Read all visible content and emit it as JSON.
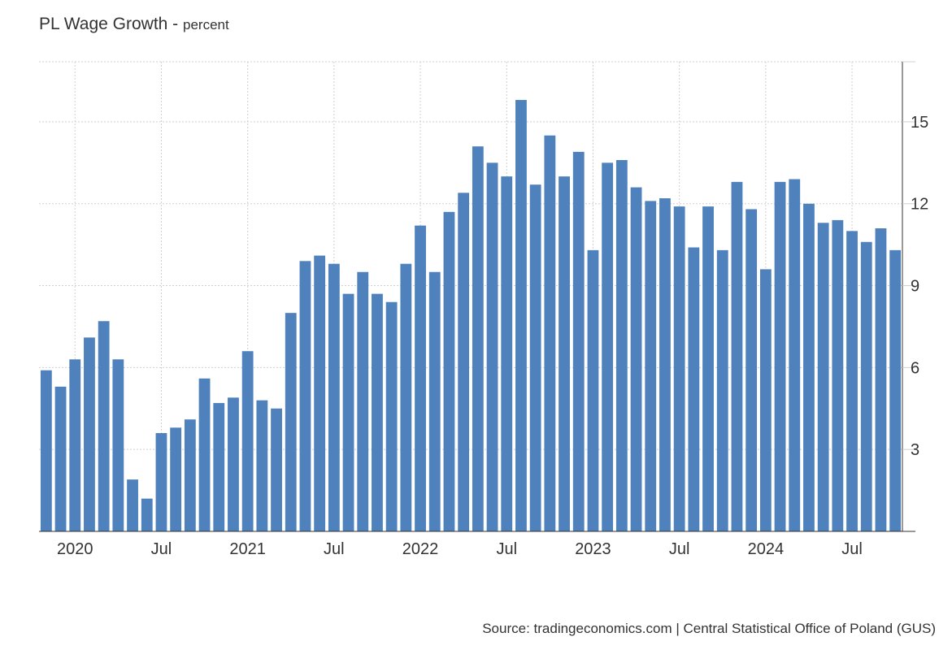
{
  "header": {
    "title": "PL Wage Growth",
    "unit": "percent"
  },
  "footer": {
    "source": "Source: tradingeconomics.com | Central Statistical Office of Poland (GUS)"
  },
  "colors": {
    "bar": "#4f81bd",
    "grid": "#d0d0d0",
    "axis": "#333333",
    "text": "#333333"
  },
  "chart_data": {
    "type": "bar",
    "title": "PL Wage Growth",
    "ylabel": "percent",
    "xlabel": "",
    "ylim": [
      0,
      17.2
    ],
    "y_ticks": [
      3,
      6,
      9,
      12,
      15
    ],
    "y_axis_side": "right",
    "grid": true,
    "legend": "none",
    "x_ticks": [
      {
        "label": "2020",
        "category": "2020-01"
      },
      {
        "label": "Jul",
        "category": "2020-07"
      },
      {
        "label": "2021",
        "category": "2021-01"
      },
      {
        "label": "Jul",
        "category": "2021-07"
      },
      {
        "label": "2022",
        "category": "2022-01"
      },
      {
        "label": "Jul",
        "category": "2022-07"
      },
      {
        "label": "2023",
        "category": "2023-01"
      },
      {
        "label": "Jul",
        "category": "2023-07"
      },
      {
        "label": "2024",
        "category": "2024-01"
      },
      {
        "label": "Jul",
        "category": "2024-07"
      }
    ],
    "categories": [
      "2019-11",
      "2019-12",
      "2020-01",
      "2020-02",
      "2020-03",
      "2020-04",
      "2020-05",
      "2020-06",
      "2020-07",
      "2020-08",
      "2020-09",
      "2020-10",
      "2020-11",
      "2020-12",
      "2021-01",
      "2021-02",
      "2021-03",
      "2021-04",
      "2021-05",
      "2021-06",
      "2021-07",
      "2021-08",
      "2021-09",
      "2021-10",
      "2021-11",
      "2021-12",
      "2022-01",
      "2022-02",
      "2022-03",
      "2022-04",
      "2022-05",
      "2022-06",
      "2022-07",
      "2022-08",
      "2022-09",
      "2022-10",
      "2022-11",
      "2022-12",
      "2023-01",
      "2023-02",
      "2023-03",
      "2023-04",
      "2023-05",
      "2023-06",
      "2023-07",
      "2023-08",
      "2023-09",
      "2023-10",
      "2023-11",
      "2023-12",
      "2024-01",
      "2024-02",
      "2024-03",
      "2024-04",
      "2024-05",
      "2024-06",
      "2024-07",
      "2024-08",
      "2024-09",
      "2024-10"
    ],
    "values": [
      5.9,
      5.3,
      6.3,
      7.1,
      7.7,
      6.3,
      1.9,
      1.2,
      3.6,
      3.8,
      4.1,
      5.6,
      4.7,
      4.9,
      6.6,
      4.8,
      4.5,
      8.0,
      9.9,
      10.1,
      9.8,
      8.7,
      9.5,
      8.7,
      8.4,
      9.8,
      11.2,
      9.5,
      11.7,
      12.4,
      14.1,
      13.5,
      13.0,
      15.8,
      12.7,
      14.5,
      13.0,
      13.9,
      10.3,
      13.5,
      13.6,
      12.6,
      12.1,
      12.2,
      11.9,
      10.4,
      11.9,
      10.3,
      12.8,
      11.8,
      9.6,
      12.8,
      12.9,
      12.0,
      11.3,
      11.4,
      11.0,
      10.6,
      11.1,
      10.3
    ]
  }
}
